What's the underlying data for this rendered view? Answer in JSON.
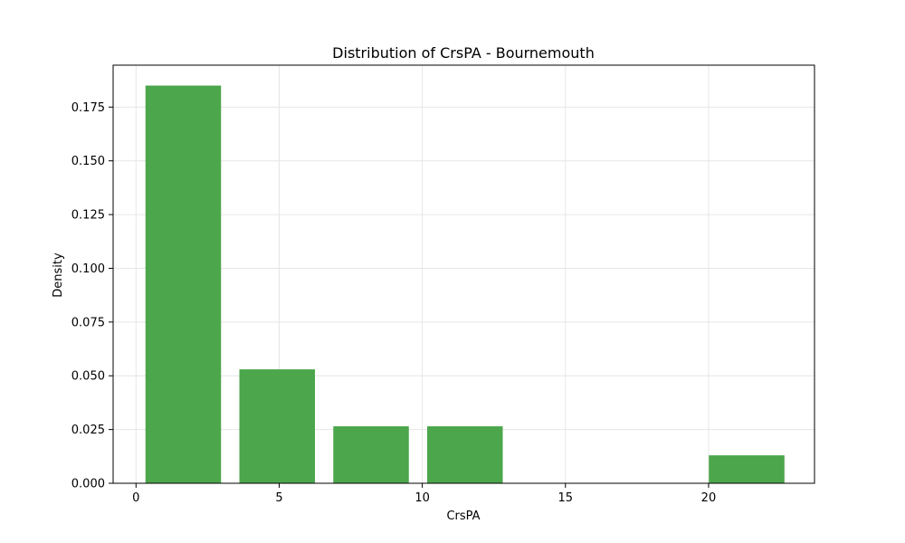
{
  "chart_data": {
    "type": "bar",
    "title": "Distribution of CrsPA - Bournemouth",
    "xlabel": "CrsPA",
    "ylabel": "Density",
    "xlim": [
      -0.8,
      23.7
    ],
    "ylim": [
      0,
      0.1945
    ],
    "xticks": [
      0,
      5,
      10,
      15,
      20
    ],
    "yticks": [
      0.0,
      0.025,
      0.05,
      0.075,
      0.1,
      0.125,
      0.15,
      0.175
    ],
    "ytick_labels": [
      "0.000",
      "0.025",
      "0.050",
      "0.075",
      "0.100",
      "0.125",
      "0.150",
      "0.175"
    ],
    "bins": [
      {
        "x0": 0.33,
        "x1": 2.97,
        "value": 0.185
      },
      {
        "x0": 3.61,
        "x1": 6.25,
        "value": 0.053
      },
      {
        "x0": 6.89,
        "x1": 9.53,
        "value": 0.0265
      },
      {
        "x0": 10.17,
        "x1": 12.81,
        "value": 0.0265
      },
      {
        "x0": 13.45,
        "x1": 16.09,
        "value": 0.0
      },
      {
        "x0": 16.73,
        "x1": 19.37,
        "value": 0.0
      },
      {
        "x0": 20.01,
        "x1": 22.65,
        "value": 0.013
      }
    ],
    "bar_color": "#4ca64c",
    "grid": true
  }
}
